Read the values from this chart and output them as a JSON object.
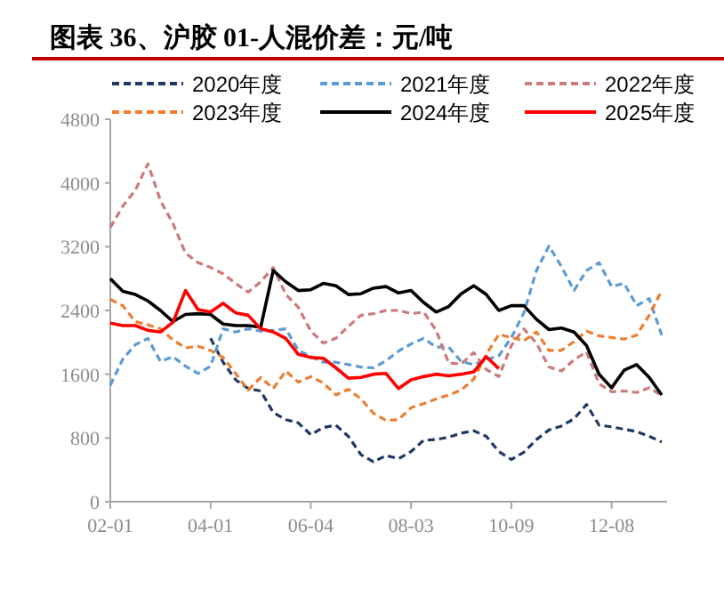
{
  "chart_data": {
    "type": "line",
    "title": "图表 36、沪胶 01-人混价差：元/吨",
    "categories": [
      "02-01",
      null,
      null,
      null,
      null,
      null,
      null,
      null,
      "04-01",
      null,
      null,
      null,
      null,
      null,
      null,
      null,
      "06-04",
      null,
      null,
      null,
      null,
      null,
      null,
      null,
      "08-03",
      null,
      null,
      null,
      null,
      null,
      null,
      null,
      "10-09",
      null,
      null,
      null,
      null,
      null,
      null,
      null,
      "12-08",
      null,
      null,
      null,
      null
    ],
    "ylim": [
      0,
      4800
    ],
    "yticks": [
      0,
      800,
      1600,
      2400,
      3200,
      4000,
      4800
    ],
    "legend": "top",
    "grid": false,
    "series": [
      {
        "name": "2020年度",
        "color": "#1f3864",
        "line_style": "dashed",
        "values": [
          null,
          null,
          null,
          null,
          null,
          null,
          null,
          null,
          2050,
          1750,
          1530,
          1420,
          1390,
          1120,
          1030,
          990,
          840,
          930,
          960,
          820,
          590,
          500,
          580,
          540,
          630,
          770,
          780,
          810,
          860,
          890,
          820,
          630,
          530,
          620,
          780,
          900,
          950,
          1040,
          1220,
          960,
          940,
          910,
          880,
          820,
          750
        ]
      },
      {
        "name": "2021年度",
        "color": "#5b9bd5",
        "line_style": "dashed",
        "values": [
          1460,
          1790,
          1970,
          2050,
          1760,
          1820,
          1700,
          1610,
          1700,
          2170,
          2130,
          2170,
          2140,
          2150,
          2170,
          1900,
          1820,
          1750,
          1750,
          1720,
          1690,
          1680,
          1770,
          1890,
          1980,
          2050,
          1940,
          1940,
          1760,
          1720,
          1780,
          1830,
          2060,
          2370,
          2900,
          3210,
          2950,
          2650,
          2900,
          3000,
          2700,
          2740,
          2460,
          2550,
          2090
        ]
      },
      {
        "name": "2022年度",
        "color": "#cc7a7a",
        "line_style": "dashed",
        "values": [
          3440,
          3710,
          3910,
          4240,
          3780,
          3490,
          3120,
          3000,
          2940,
          2860,
          2740,
          2630,
          2760,
          2940,
          2600,
          2440,
          2140,
          1990,
          2050,
          2200,
          2340,
          2360,
          2400,
          2400,
          2360,
          2380,
          2150,
          1740,
          1730,
          1870,
          1660,
          1570,
          1960,
          2170,
          1990,
          1690,
          1640,
          1780,
          1880,
          1480,
          1380,
          1390,
          1370,
          1430,
          1330
        ]
      },
      {
        "name": "2023年度",
        "color": "#ed7d31",
        "line_style": "dashed",
        "values": [
          2540,
          2460,
          2260,
          2220,
          2170,
          2030,
          1930,
          1950,
          1900,
          1810,
          1610,
          1400,
          1560,
          1420,
          1640,
          1500,
          1570,
          1490,
          1340,
          1410,
          1290,
          1110,
          1020,
          1030,
          1180,
          1230,
          1290,
          1340,
          1400,
          1540,
          1850,
          2100,
          2060,
          2020,
          2130,
          1900,
          1900,
          2010,
          2140,
          2080,
          2060,
          2040,
          2090,
          2340,
          2650
        ]
      },
      {
        "name": "2024年度",
        "color": "#000000",
        "line_style": "solid",
        "values": [
          2800,
          2640,
          2600,
          2520,
          2400,
          2260,
          2350,
          2360,
          2350,
          2230,
          2210,
          2210,
          2190,
          2900,
          2760,
          2650,
          2660,
          2740,
          2710,
          2600,
          2610,
          2680,
          2700,
          2620,
          2650,
          2500,
          2380,
          2450,
          2610,
          2710,
          2600,
          2400,
          2460,
          2460,
          2290,
          2160,
          2180,
          2130,
          1960,
          1600,
          1430,
          1650,
          1720,
          1560,
          1340
        ]
      },
      {
        "name": "2025年度",
        "color": "#ff0000",
        "line_style": "solid",
        "values": [
          2240,
          2210,
          2210,
          2150,
          2130,
          2250,
          2650,
          2410,
          2380,
          2490,
          2370,
          2340,
          2170,
          2130,
          2050,
          1850,
          1810,
          1800,
          1680,
          1550,
          1560,
          1600,
          1610,
          1420,
          1530,
          1570,
          1600,
          1580,
          1600,
          1630,
          1820,
          1670,
          null,
          null,
          null,
          null,
          null,
          null,
          null,
          null,
          null,
          null,
          null,
          null,
          null
        ]
      }
    ]
  }
}
